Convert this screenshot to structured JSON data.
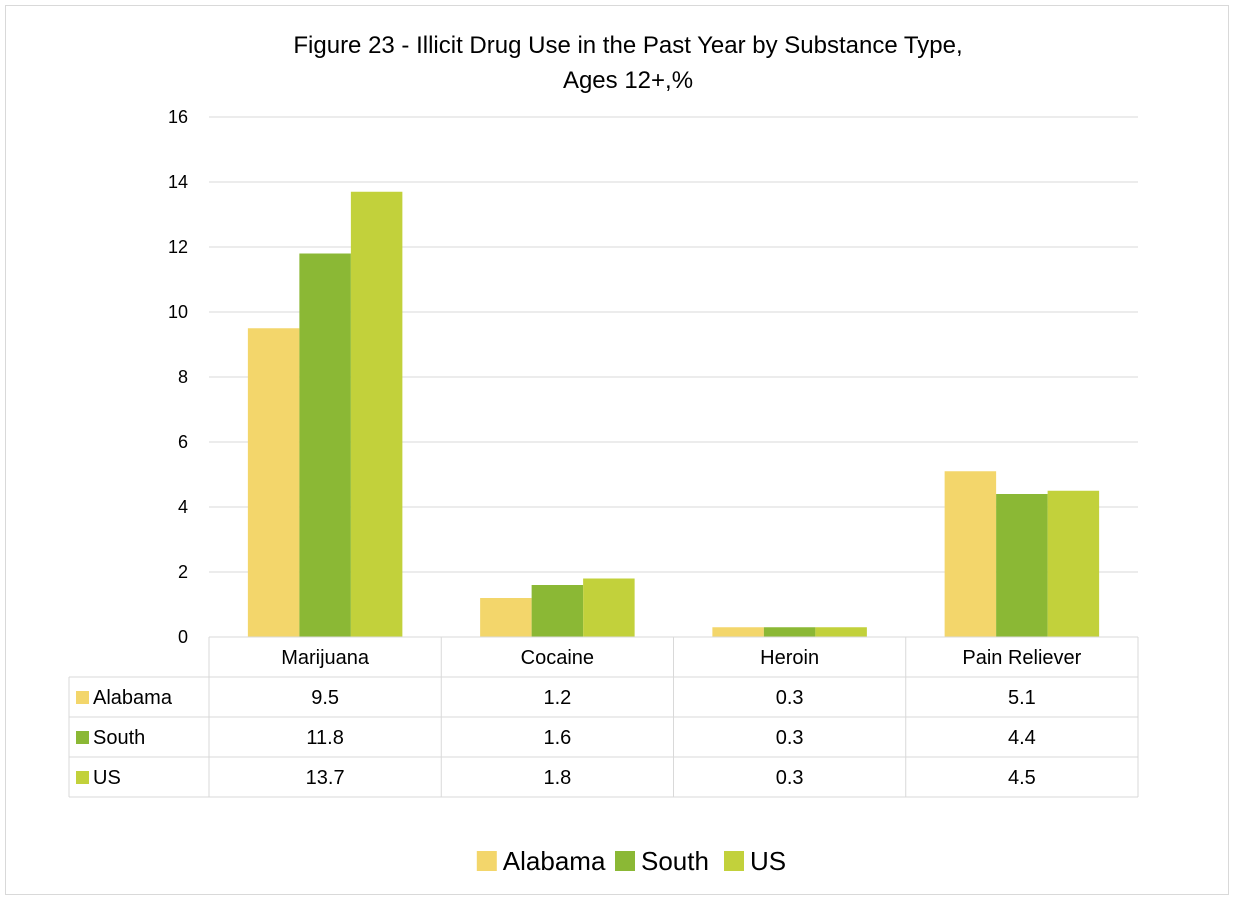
{
  "chart_data": {
    "type": "bar",
    "title": "Figure 23 - Illicit Drug Use in the Past Year by Substance Type,",
    "subtitle": "Ages 12+,%",
    "categories": [
      "Marijuana",
      "Cocaine",
      "Heroin",
      "Pain Reliever"
    ],
    "series": [
      {
        "name": "Alabama",
        "values": [
          9.5,
          1.2,
          0.3,
          5.1
        ],
        "color": "#f3d66b"
      },
      {
        "name": "South",
        "values": [
          11.8,
          1.6,
          0.3,
          4.4
        ],
        "color": "#8bb835"
      },
      {
        "name": "US",
        "values": [
          13.7,
          1.8,
          0.3,
          4.5
        ],
        "color": "#c2d13b"
      }
    ],
    "data_labels": {
      "Alabama": [
        "9.5",
        "1.2",
        "0.3",
        "5.1"
      ],
      "South": [
        "11.8",
        "1.6",
        "0.3",
        "4.4"
      ],
      "US": [
        "13.7",
        "1.8",
        "0.3",
        "4.5"
      ]
    },
    "ylim": [
      0,
      16
    ],
    "yticks": [
      0,
      2,
      4,
      6,
      8,
      10,
      12,
      14,
      16
    ],
    "ytick_labels": [
      "0",
      "2",
      "4",
      "6",
      "8",
      "10",
      "12",
      "14",
      "16"
    ],
    "xlabel": "",
    "ylabel": "",
    "grid": true,
    "legend": "bottom",
    "data_table": true,
    "gridline_color": "#d9d9d9"
  }
}
